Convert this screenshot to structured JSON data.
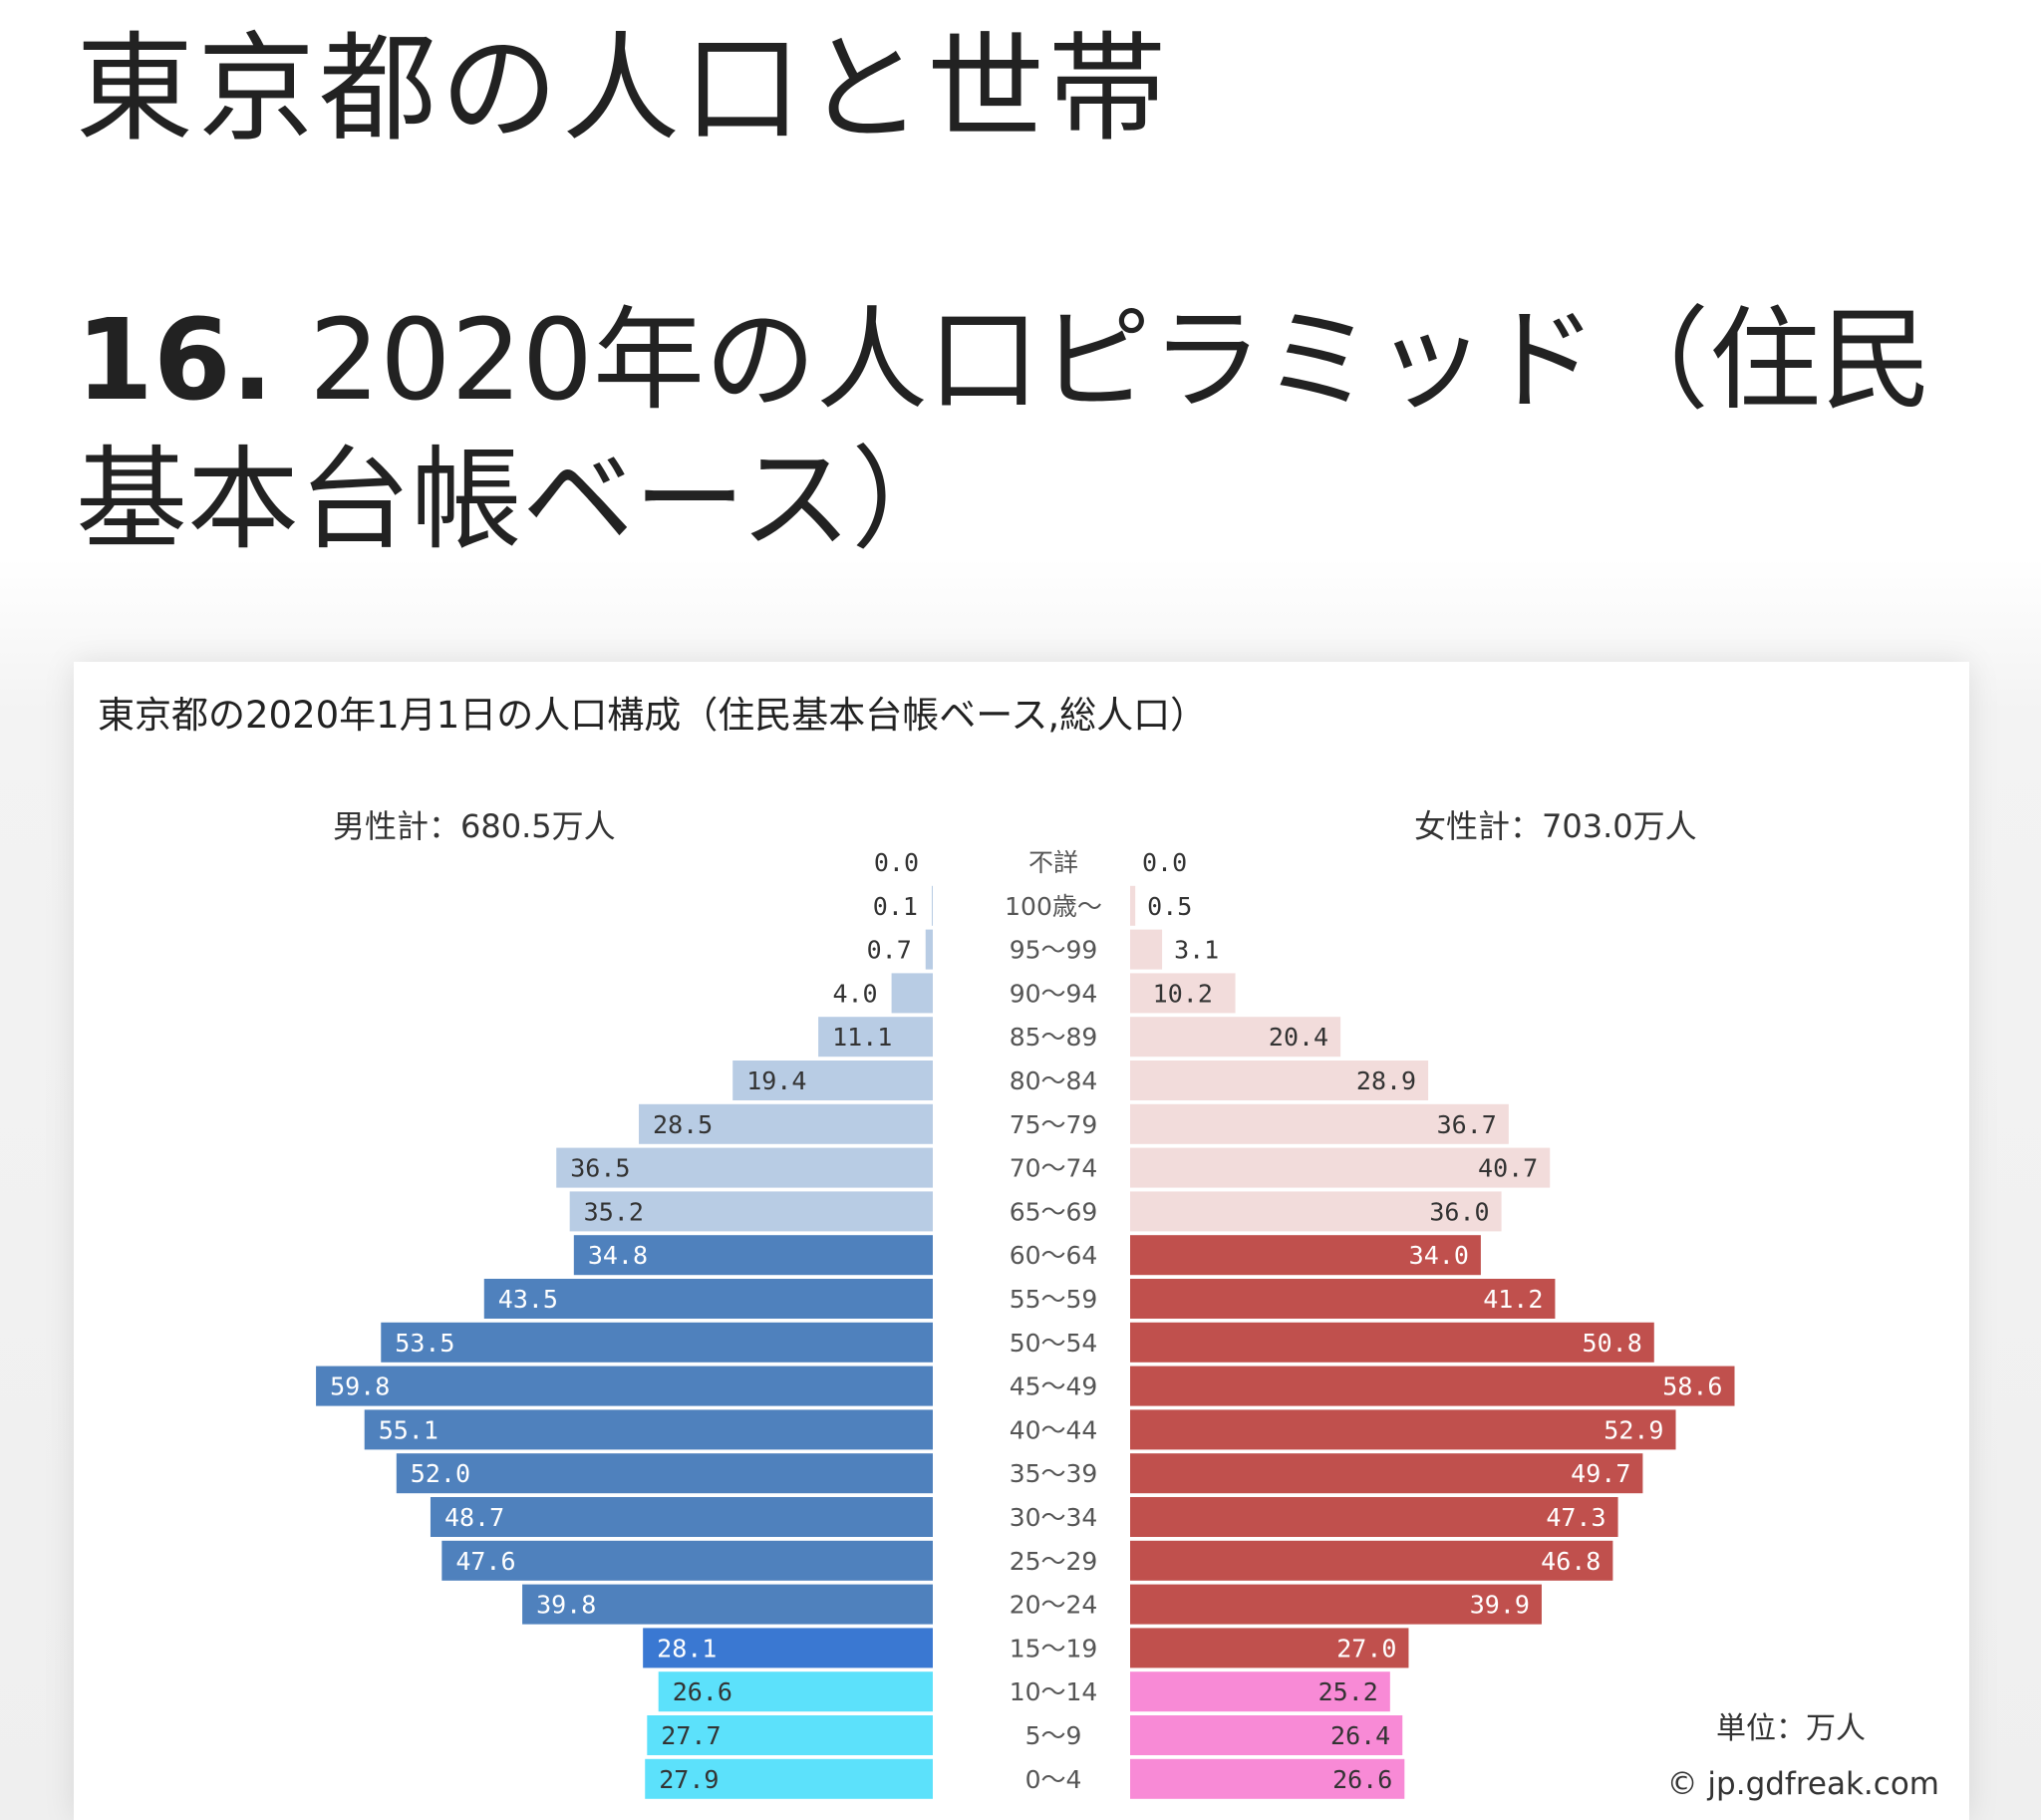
{
  "page": {
    "title": "東京都の人口と世帯",
    "section_number": "16.",
    "section_title": "2020年の人口ピラミッド（住民基本台帳ベース）"
  },
  "chart_data": {
    "type": "bar",
    "subtype": "population-pyramid",
    "title": "東京都の2020年1月1日の人口構成（住民基本台帳ベース,総人口）",
    "male_total_label": "男性計：680.5万人",
    "female_total_label": "女性計：703.0万人",
    "unit_label": "単位：万人",
    "credit": "© jp.gdfreak.com",
    "categories": [
      "不詳",
      "100歳～",
      "95～99",
      "90～94",
      "85～89",
      "80～84",
      "75～79",
      "70～74",
      "65～69",
      "60～64",
      "55～59",
      "50～54",
      "45～49",
      "40～44",
      "35～39",
      "30～34",
      "25～29",
      "20～24",
      "15～19",
      "10～14",
      "5～9",
      "0～4"
    ],
    "series": [
      {
        "name": "男性",
        "values": [
          0.0,
          0.1,
          0.7,
          4.0,
          11.1,
          19.4,
          28.5,
          36.5,
          35.2,
          34.8,
          43.5,
          53.5,
          59.8,
          55.1,
          52.0,
          48.7,
          47.6,
          39.8,
          28.1,
          26.6,
          27.7,
          27.9
        ],
        "labels": [
          "0.0",
          "0.1",
          "0.7",
          "4.0",
          "11.1",
          "19.4",
          "28.5",
          "36.5",
          "35.2",
          "34.8",
          "43.5",
          "53.5",
          "59.8",
          "55.1",
          "52.0",
          "48.7",
          "47.6",
          "39.8",
          "28.1",
          "26.6",
          "27.7",
          "27.9"
        ]
      },
      {
        "name": "女性",
        "values": [
          0.0,
          0.5,
          3.1,
          10.2,
          20.4,
          28.9,
          36.7,
          40.7,
          36.0,
          34.0,
          41.2,
          50.8,
          58.6,
          52.9,
          49.7,
          47.3,
          46.8,
          39.9,
          27.0,
          25.2,
          26.4,
          26.6
        ],
        "labels": [
          "0.0",
          "0.5",
          "3.1",
          "10.2",
          "20.4",
          "28.9",
          "36.7",
          "40.7",
          "36.0",
          "34.0",
          "41.2",
          "50.8",
          "58.6",
          "52.9",
          "49.7",
          "47.3",
          "46.8",
          "39.9",
          "27.0",
          "25.2",
          "26.4",
          "26.6"
        ]
      }
    ],
    "colors": {
      "male_elderly": "#b8cce4",
      "male_working": "#4f81bd",
      "male_15_19": "#3a78d2",
      "male_young": "#5ce1fb",
      "female_elderly": "#f2dcdb",
      "female_working": "#c0504d",
      "female_young": "#f88ad6",
      "label_dark": "#333333",
      "label_light": "#ffffff",
      "axis_text": "#555555"
    },
    "grid": false,
    "legend": "none"
  }
}
